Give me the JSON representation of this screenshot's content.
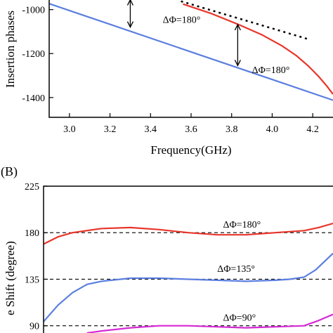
{
  "chart_data": [
    {
      "panel_label": "",
      "type": "line",
      "xlabel": "Frequency(GHz)",
      "ylabel": "Insertion phases",
      "xlim": [
        2.9,
        4.3
      ],
      "ylim": [
        -1490,
        -950
      ],
      "x_ticks": [
        3.0,
        3.2,
        3.4,
        3.6,
        3.8,
        4.0,
        4.2
      ],
      "x_tick_labels": [
        "3.0",
        "3.2",
        "3.4",
        "3.6",
        "3.8",
        "4.0",
        "4.2"
      ],
      "y_ticks": [
        -1000,
        -1200,
        -1400
      ],
      "y_tick_labels": [
        "-1000",
        "-1200",
        "-1400"
      ],
      "series": [
        {
          "color": "#5b7fdf",
          "style": "solid",
          "x": [
            2.9,
            4.3
          ],
          "y": [
            -973,
            -1412
          ]
        },
        {
          "color": "#e8352b",
          "style": "solid",
          "x": [
            3.56,
            3.7,
            3.84,
            3.95,
            4.05,
            4.12,
            4.18,
            4.23,
            4.27,
            4.3
          ],
          "y": [
            -975,
            -1018,
            -1070,
            -1115,
            -1166,
            -1210,
            -1258,
            -1305,
            -1348,
            -1385
          ]
        },
        {
          "color": "#000000",
          "style": "dotted",
          "x": [
            3.55,
            4.18
          ],
          "y": [
            -962,
            -1135
          ]
        }
      ],
      "annotations": [
        {
          "text": "ΔΦ=180°",
          "x": 3.46,
          "y": -1060
        },
        {
          "text": "ΔΦ=180°",
          "x": 3.9,
          "y": -1288
        }
      ],
      "arrows": [
        {
          "x": 3.3,
          "y_from": -955,
          "y_to": -1080
        },
        {
          "x": 3.83,
          "y_from": -1068,
          "y_to": -1255
        }
      ]
    },
    {
      "panel_label": "(B)",
      "type": "line",
      "ylabel": "e Shift (degree)",
      "ylim": [
        83,
        225
      ],
      "y_ticks": [
        90,
        135,
        180,
        225
      ],
      "y_tick_labels": [
        "90",
        "135",
        "180",
        "225"
      ],
      "series": [
        {
          "color": "#e8352b",
          "x": [
            0,
            0.05,
            0.1,
            0.2,
            0.3,
            0.4,
            0.5,
            0.6,
            0.7,
            0.8,
            0.9,
            0.95,
            1.0
          ],
          "y": [
            169,
            176,
            180,
            184,
            185,
            183,
            180,
            178,
            178,
            180,
            182,
            185,
            189
          ]
        },
        {
          "color": "#5b7fdf",
          "x": [
            0,
            0.05,
            0.1,
            0.15,
            0.2,
            0.3,
            0.4,
            0.5,
            0.6,
            0.7,
            0.8,
            0.85,
            0.9,
            0.94,
            0.97,
            1.0
          ],
          "y": [
            94,
            110,
            122,
            130,
            133,
            136,
            136,
            135,
            134,
            133,
            134,
            135,
            137,
            144,
            152,
            160
          ]
        },
        {
          "color": "#d62ad4",
          "x": [
            0.15,
            0.2,
            0.3,
            0.4,
            0.5,
            0.6,
            0.7,
            0.8,
            0.9,
            0.95,
            1.0
          ],
          "y": [
            83,
            85,
            88,
            90,
            90,
            89,
            88,
            89,
            90,
            95,
            101
          ]
        }
      ],
      "reference_lines": [
        180,
        135,
        90
      ],
      "annotations": [
        {
          "text": "ΔΦ=180°",
          "x": 0.62,
          "y": 185
        },
        {
          "text": "ΔΦ=135°",
          "x": 0.6,
          "y": 142
        },
        {
          "text": "ΔΦ=90°",
          "x": 0.62,
          "y": 95
        }
      ]
    }
  ]
}
